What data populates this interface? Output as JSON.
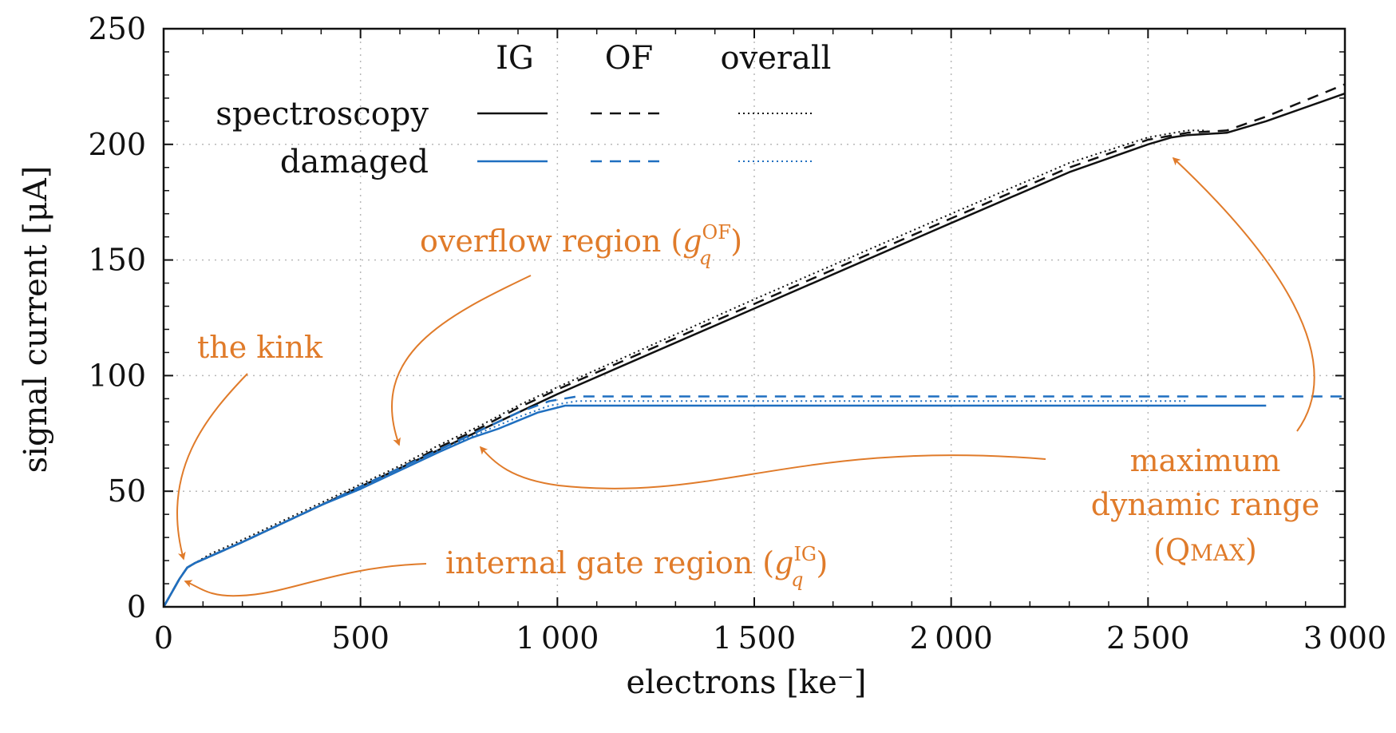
{
  "chart_data": {
    "type": "line",
    "xlabel": "electrons [ke⁻]",
    "ylabel": "signal current [μA]",
    "xlim": [
      0,
      3000
    ],
    "ylim": [
      0,
      250
    ],
    "x_ticks": [
      0,
      500,
      1000,
      1500,
      2000,
      2500,
      3000
    ],
    "x_tick_labels": [
      "0",
      "500",
      "1 000",
      "1 500",
      "2 000",
      "2 500",
      "3 000"
    ],
    "y_ticks": [
      0,
      50,
      100,
      150,
      200,
      250
    ],
    "y_tick_labels": [
      "0",
      "50",
      "100",
      "150",
      "200",
      "250"
    ],
    "grid": true,
    "legend": {
      "columns": [
        "IG",
        "OF",
        "overall"
      ],
      "rows": [
        "spectroscopy",
        "damaged"
      ]
    },
    "colors": {
      "spectroscopy": "#111111",
      "damaged": "#1f6fc0",
      "annotation": "#e07b2a"
    },
    "series": [
      {
        "name": "spectroscopy IG",
        "color": "#111111",
        "dash": "solid",
        "x": [
          0,
          20,
          40,
          60,
          80,
          120,
          200,
          300,
          400,
          500,
          600,
          700,
          800,
          900,
          1000,
          1500,
          2000,
          2300,
          2500,
          2560,
          2600,
          2700,
          2800,
          3000
        ],
        "y": [
          0,
          6,
          12,
          17,
          19,
          22,
          28,
          36,
          44,
          52,
          60,
          68,
          76,
          84,
          92,
          129,
          166,
          188,
          200,
          203,
          204,
          205,
          210,
          222
        ]
      },
      {
        "name": "spectroscopy OF",
        "color": "#111111",
        "dash": "dashed",
        "x": [
          0,
          20,
          40,
          60,
          80,
          120,
          200,
          300,
          400,
          500,
          600,
          700,
          800,
          900,
          1000,
          1500,
          2000,
          2300,
          2500,
          2600,
          2700,
          2800,
          3000
        ],
        "y": [
          0,
          6,
          12,
          17,
          19,
          22,
          28,
          36,
          44,
          52,
          60,
          69,
          77,
          86,
          94,
          131,
          168,
          190,
          202,
          205,
          206,
          212,
          226
        ]
      },
      {
        "name": "spectroscopy overall",
        "color": "#111111",
        "dash": "dotted",
        "x": [
          0,
          20,
          40,
          60,
          80,
          120,
          200,
          300,
          400,
          500,
          600,
          700,
          800,
          900,
          1000,
          1500,
          2000,
          2300,
          2500,
          2600,
          2650
        ],
        "y": [
          0,
          6,
          12,
          17,
          19,
          23,
          29,
          37,
          45,
          53,
          61,
          70,
          78,
          87,
          95,
          133,
          170,
          192,
          203,
          206,
          206
        ]
      },
      {
        "name": "damaged IG",
        "color": "#1f6fc0",
        "dash": "solid",
        "x": [
          0,
          20,
          40,
          60,
          80,
          120,
          200,
          300,
          400,
          500,
          600,
          700,
          780,
          850,
          950,
          1020,
          1100,
          1500,
          2000,
          2500,
          2800
        ],
        "y": [
          0,
          6,
          12,
          17,
          19,
          22,
          28,
          36,
          44,
          51,
          59,
          67,
          73,
          77,
          84,
          87,
          87,
          87,
          87,
          87,
          87
        ]
      },
      {
        "name": "damaged OF",
        "color": "#1f6fc0",
        "dash": "dashed",
        "x": [
          0,
          20,
          40,
          60,
          80,
          120,
          200,
          300,
          400,
          500,
          600,
          700,
          800,
          900,
          980,
          1050,
          1100,
          1500,
          2000,
          2500,
          3000
        ],
        "y": [
          0,
          6,
          12,
          17,
          19,
          22,
          28,
          36,
          44,
          52,
          60,
          68,
          76,
          84,
          89,
          91,
          91,
          91,
          91,
          91,
          91
        ]
      },
      {
        "name": "damaged overall",
        "color": "#1f6fc0",
        "dash": "dotted",
        "x": [
          0,
          20,
          40,
          60,
          80,
          120,
          200,
          300,
          400,
          500,
          600,
          700,
          800,
          900,
          980,
          1050,
          1100,
          1500,
          2000,
          2600
        ],
        "y": [
          0,
          6,
          12,
          17,
          19,
          22,
          28,
          36,
          44,
          52,
          60,
          68,
          75,
          82,
          87,
          89,
          89,
          89,
          89,
          89
        ]
      }
    ],
    "annotations": [
      {
        "text": "the kink"
      },
      {
        "text": "overflow region (",
        "math": "g",
        "sub": "q",
        "sup": "OF",
        "end": ")"
      },
      {
        "text": "internal gate region (",
        "math": "g",
        "sub": "q",
        "sup": "IG",
        "end": ")"
      },
      {
        "lines": [
          "maximum",
          "dynamic range",
          "(Q",
          "MAX",
          ")"
        ]
      }
    ]
  }
}
